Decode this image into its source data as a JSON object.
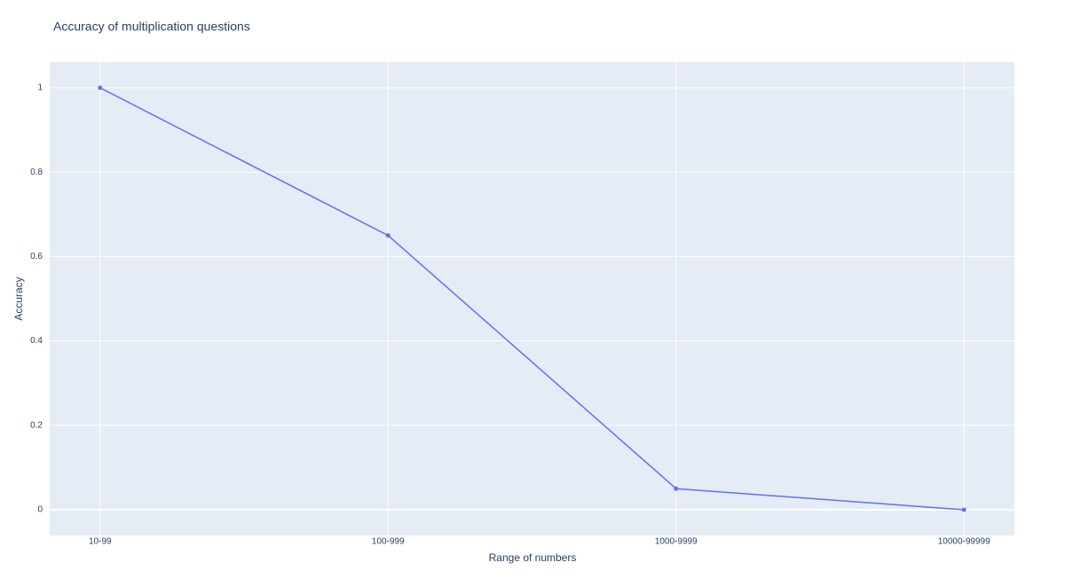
{
  "chart_data": {
    "type": "line",
    "title": "Accuracy of multiplication questions",
    "x_label": "Range of numbers",
    "y_label": "Accuracy",
    "categories": [
      "10-99",
      "100-999",
      "1000-9999",
      "10000-99999"
    ],
    "series": [
      {
        "name": "Accuracy",
        "color": "#636efa",
        "values": [
          1,
          0.65,
          0.05,
          0
        ]
      }
    ],
    "ylim": [
      -0.061,
      1.061
    ],
    "yticks": [
      0,
      0.2,
      0.4,
      0.6,
      0.8,
      1
    ],
    "grid": true
  }
}
